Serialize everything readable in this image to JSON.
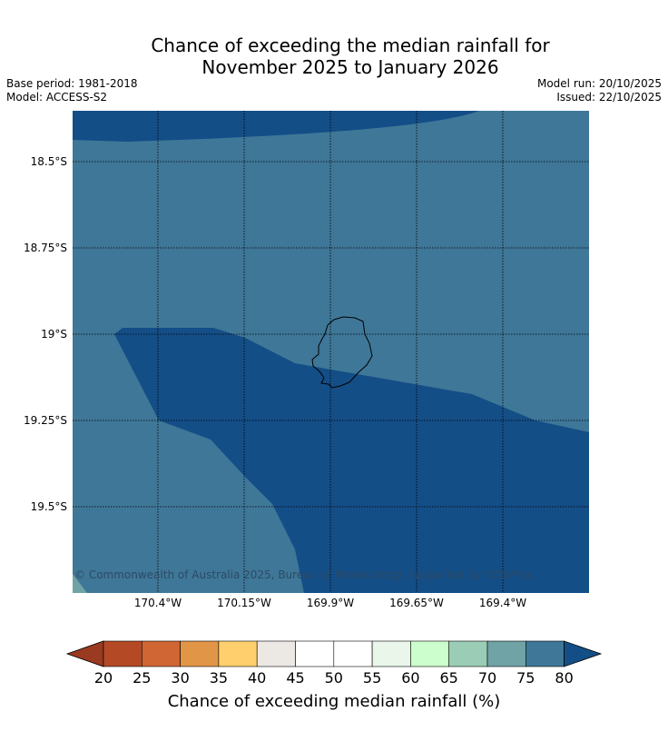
{
  "title": {
    "line1": "Chance of exceeding the median rainfall for",
    "line2": "November 2025 to January 2026"
  },
  "meta": {
    "base_period": "Base period: 1981-2018",
    "model": "Model: ACCESS-S2",
    "model_run": "Model run: 20/10/2025",
    "issued": "Issued: 22/10/2025"
  },
  "map": {
    "region": "Niue",
    "lat_labels": [
      "18.5°S",
      "18.75°S",
      "19°S",
      "19.25°S",
      "19.5°S"
    ],
    "lon_labels": [
      "170.4°W",
      "170.15°W",
      "169.9°W",
      "169.65°W",
      "169.4°W"
    ],
    "copyright": "© Commonwealth of Australia 2025, Bureau of Meteorology, supported by COSPPac",
    "colors": {
      "band_75_80": "#3f7798",
      "band_80_plus": "#144e87",
      "band_70_75": "#6fa3a6"
    }
  },
  "colorbar": {
    "label": "Chance of exceeding median rainfall (%)",
    "ticks": [
      "20",
      "25",
      "30",
      "35",
      "40",
      "45",
      "50",
      "55",
      "60",
      "65",
      "70",
      "75",
      "80"
    ],
    "colors": [
      "#b34a25",
      "#cf6634",
      "#e19546",
      "#fecf6c",
      "#ece8e4",
      "#ffffff",
      "#ffffff",
      "#eaf6ea",
      "#ccfdcc",
      "#9bcdb6",
      "#6fa3a6",
      "#3f7798"
    ],
    "under_color": "#9a3a20",
    "over_color": "#144e87"
  }
}
